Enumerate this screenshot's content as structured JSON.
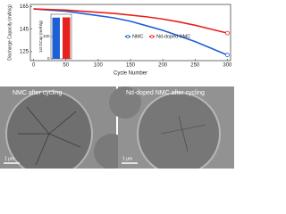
{
  "chart_data": [
    {
      "type": "line",
      "x_label": "Cycle Number",
      "y_label": "Discharge Capacity (mAh/g)",
      "x": [
        0,
        25,
        50,
        75,
        100,
        125,
        150,
        175,
        200,
        225,
        250,
        275,
        300
      ],
      "series": [
        {
          "name": "NMC",
          "color": "#1f5fd6",
          "values": [
            163,
            162,
            161,
            159,
            157,
            155,
            152,
            148,
            144,
            139,
            134,
            128,
            122
          ]
        },
        {
          "name": "Nd-doped NMC",
          "color": "#e8201e",
          "values": [
            163,
            162.5,
            162,
            161,
            160,
            159,
            157.5,
            156,
            154,
            151.5,
            148.5,
            145,
            141.5
          ]
        }
      ],
      "xlim": [
        -5,
        305
      ],
      "ylim": [
        117,
        167
      ],
      "xticks": [
        0,
        50,
        100,
        150,
        200,
        250,
        300
      ],
      "yticks": [
        125,
        145,
        165
      ]
    },
    {
      "type": "bar",
      "y_label": "1st DCap (mAh/g)",
      "categories": [
        null,
        null
      ],
      "values": [
        185,
        186
      ],
      "colors": [
        "#1f5fd6",
        "#e8201e"
      ],
      "ylim": [
        0,
        200
      ],
      "yticks": [
        0,
        100
      ]
    }
  ],
  "panels": [
    {
      "label": "NMC after cycling",
      "scale": "1 μm"
    },
    {
      "label": "Nd-doped NMC after cycling",
      "scale": "1 μm"
    }
  ]
}
